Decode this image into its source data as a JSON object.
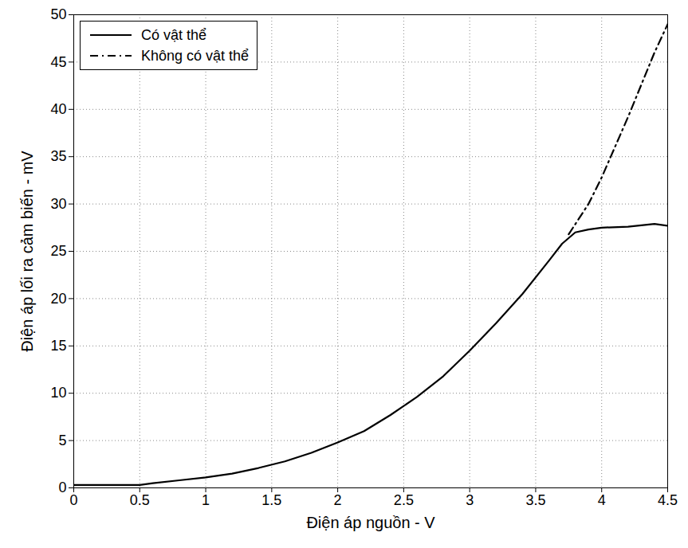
{
  "chart_data": {
    "type": "line",
    "x_label": "Điện áp nguồn - V",
    "y_label": "Điện áp lối ra cảm biến - mV",
    "xlim": [
      0,
      4.5
    ],
    "xticks": [
      0,
      0.5,
      1,
      1.5,
      2,
      2.5,
      3,
      3.5,
      4,
      4.5
    ],
    "ylim": [
      0,
      50
    ],
    "yticks": [
      0,
      5,
      10,
      15,
      20,
      25,
      30,
      35,
      40,
      45,
      50
    ],
    "grid": true,
    "legend": "top-left",
    "series": [
      {
        "name": "Có vật thể",
        "color": "#000000",
        "line_style": "solid",
        "x": [
          0,
          0.5,
          0.6,
          0.8,
          1.0,
          1.2,
          1.4,
          1.6,
          1.8,
          2.0,
          2.2,
          2.4,
          2.6,
          2.8,
          3.0,
          3.2,
          3.4,
          3.6,
          3.7,
          3.8,
          3.9,
          4.0,
          4.2,
          4.4,
          4.5
        ],
        "values": [
          0.3,
          0.3,
          0.5,
          0.8,
          1.1,
          1.5,
          2.1,
          2.8,
          3.7,
          4.8,
          6.0,
          7.7,
          9.6,
          11.8,
          14.5,
          17.4,
          20.5,
          24.0,
          25.8,
          27.0,
          27.3,
          27.5,
          27.6,
          27.9,
          27.7
        ]
      },
      {
        "name": "Không có vật thể",
        "color": "#000000",
        "line_style": "dashdot",
        "x": [
          3.75,
          3.9,
          4.0,
          4.1,
          4.2,
          4.3,
          4.4,
          4.5
        ],
        "values": [
          26.8,
          30.0,
          32.8,
          36.0,
          39.2,
          42.6,
          46.0,
          49.0
        ]
      }
    ]
  }
}
